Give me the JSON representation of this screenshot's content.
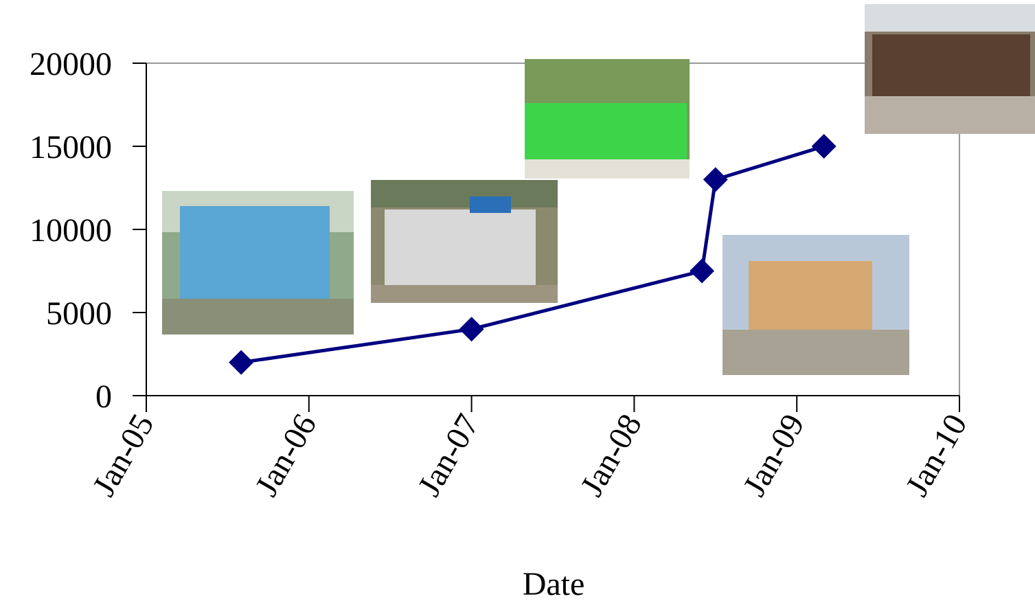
{
  "chart_data": {
    "type": "line",
    "x_label": "Date",
    "x": [
      "2005-08",
      "2007-01",
      "2008-06",
      "2008-07",
      "2009-03"
    ],
    "values": [
      2000,
      4000,
      7500,
      13000,
      15000
    ],
    "color": "#000080",
    "xlim": [
      "2005-01",
      "2010-01"
    ],
    "xticks": [
      {
        "value": "2005-01",
        "label": "Jan-05"
      },
      {
        "value": "2006-01",
        "label": "Jan-06"
      },
      {
        "value": "2007-01",
        "label": "Jan-07"
      },
      {
        "value": "2008-01",
        "label": "Jan-08"
      },
      {
        "value": "2009-01",
        "label": "Jan-09"
      },
      {
        "value": "2010-01",
        "label": "Jan-10"
      }
    ],
    "ylim": [
      0,
      20000
    ],
    "yticks": [
      0,
      5000,
      10000,
      15000,
      20000
    ]
  }
}
